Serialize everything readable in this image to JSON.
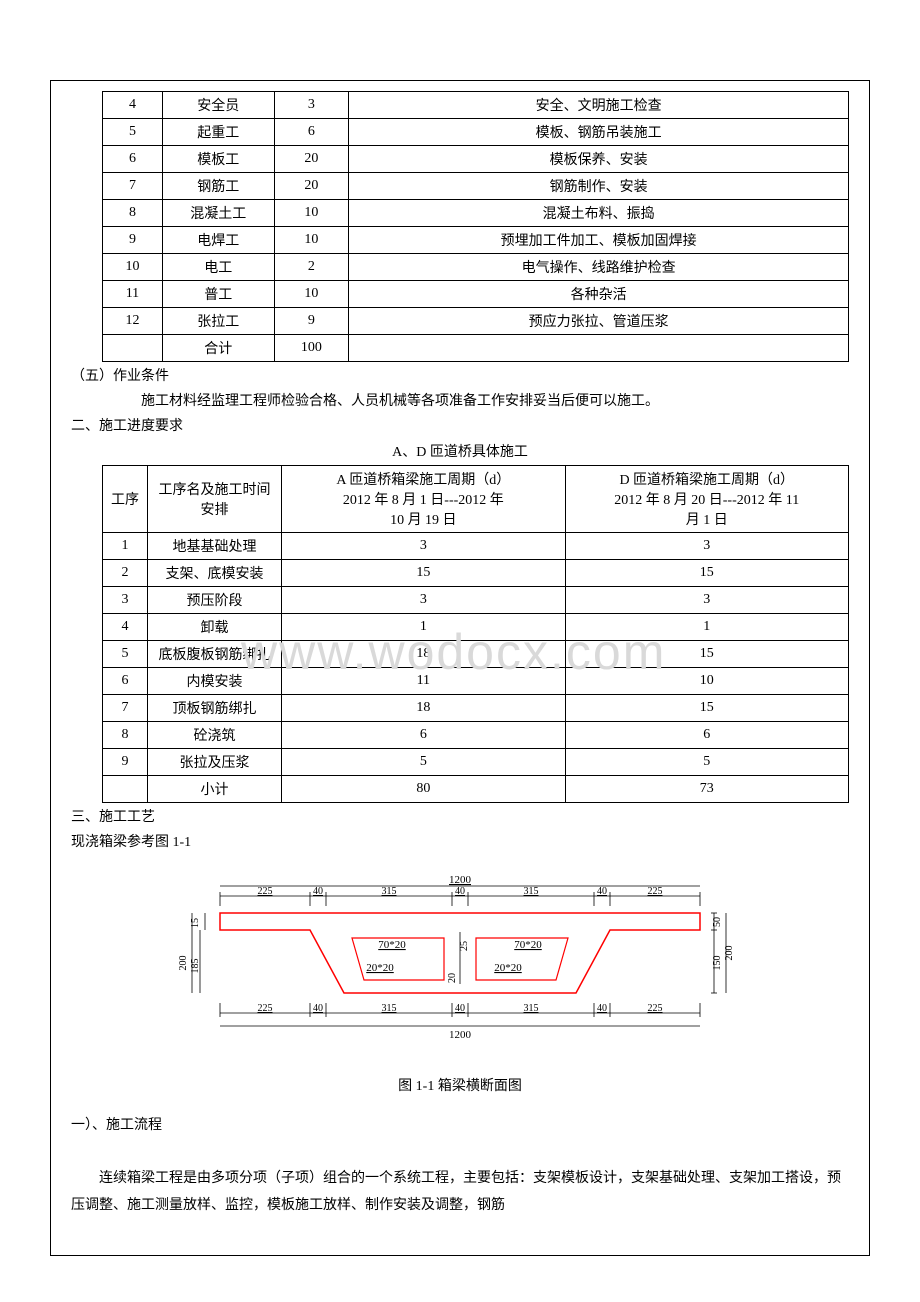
{
  "table1": {
    "rows": [
      [
        "4",
        "安全员",
        "3",
        "安全、文明施工检查"
      ],
      [
        "5",
        "起重工",
        "6",
        "模板、钢筋吊装施工"
      ],
      [
        "6",
        "模板工",
        "20",
        "模板保养、安装"
      ],
      [
        "7",
        "钢筋工",
        "20",
        "钢筋制作、安装"
      ],
      [
        "8",
        "混凝土工",
        "10",
        "混凝土布料、振捣"
      ],
      [
        "9",
        "电焊工",
        "10",
        "预埋加工件加工、模板加固焊接"
      ],
      [
        "10",
        "电工",
        "2",
        "电气操作、线路维护检查"
      ],
      [
        "11",
        "普工",
        "10",
        "各种杂活"
      ],
      [
        "12",
        "张拉工",
        "9",
        "预应力张拉、管道压浆"
      ],
      [
        "",
        "合计",
        "100",
        ""
      ]
    ]
  },
  "section5_title": "（五）作业条件",
  "section5_text": "施工材料经监理工程师检验合格、人员机械等各项准备工作安排妥当后便可以施工。",
  "section2_heading": "二、施工进度要求",
  "table2_title": "A、D 匝道桥具体施工",
  "table2": {
    "header": {
      "left": "工序",
      "name": "工序名及施工时间安排",
      "colA_l1": "A 匝道桥箱梁施工周期（d）",
      "colA_l2": "2012 年 8 月 1 日---2012 年",
      "colA_l3": "10 月 19 日",
      "colD_l1": "D 匝道桥箱梁施工周期（d）",
      "colD_l2": "2012 年 8 月 20 日---2012 年 11",
      "colD_l3": "月 1 日"
    },
    "rows": [
      [
        "1",
        "地基基础处理",
        "3",
        "3"
      ],
      [
        "2",
        "支架、底模安装",
        "15",
        "15"
      ],
      [
        "3",
        "预压阶段",
        "3",
        "3"
      ],
      [
        "4",
        "卸载",
        "1",
        "1"
      ],
      [
        "5",
        "底板腹板钢筋绑扎",
        "18",
        "15"
      ],
      [
        "6",
        "内模安装",
        "11",
        "10"
      ],
      [
        "7",
        "顶板钢筋绑扎",
        "18",
        "15"
      ],
      [
        "8",
        "砼浇筑",
        "6",
        "6"
      ],
      [
        "9",
        "张拉及压浆",
        "5",
        "5"
      ],
      [
        "",
        "小计",
        "80",
        "73"
      ]
    ]
  },
  "watermark": "www.wodocx.com",
  "section3_heading": "三、施工工艺",
  "ref_text": "现浇箱梁参考图 1-1",
  "diagram": {
    "outline_color": "#ff0000",
    "dim_color": "#000000",
    "top_total": "1200",
    "top_dims": [
      "225",
      "40",
      "315",
      "40",
      "315",
      "40",
      "225"
    ],
    "bottom_total": "1200",
    "bottom_dims": [
      "225",
      "40",
      "315",
      "40",
      "315",
      "40",
      "225"
    ],
    "left_v": [
      "15"
    ],
    "left_v2": [
      "200",
      "185"
    ],
    "right_v": [
      "50",
      "150",
      "200"
    ],
    "inner_labels": [
      "70*20",
      "70*20",
      "20*20",
      "20*20"
    ],
    "inner_v": [
      "25",
      "20"
    ]
  },
  "caption": "图 1-1 箱梁横断面图",
  "flow_heading": "一）、施工流程",
  "body_para": "连续箱梁工程是由多项分项（子项）组合的一个系统工程，主要包括：支架模板设计，支架基础处理、支架加工搭设，预压调整、施工测量放样、监控，模板施工放样、制作安装及调整，钢筋"
}
